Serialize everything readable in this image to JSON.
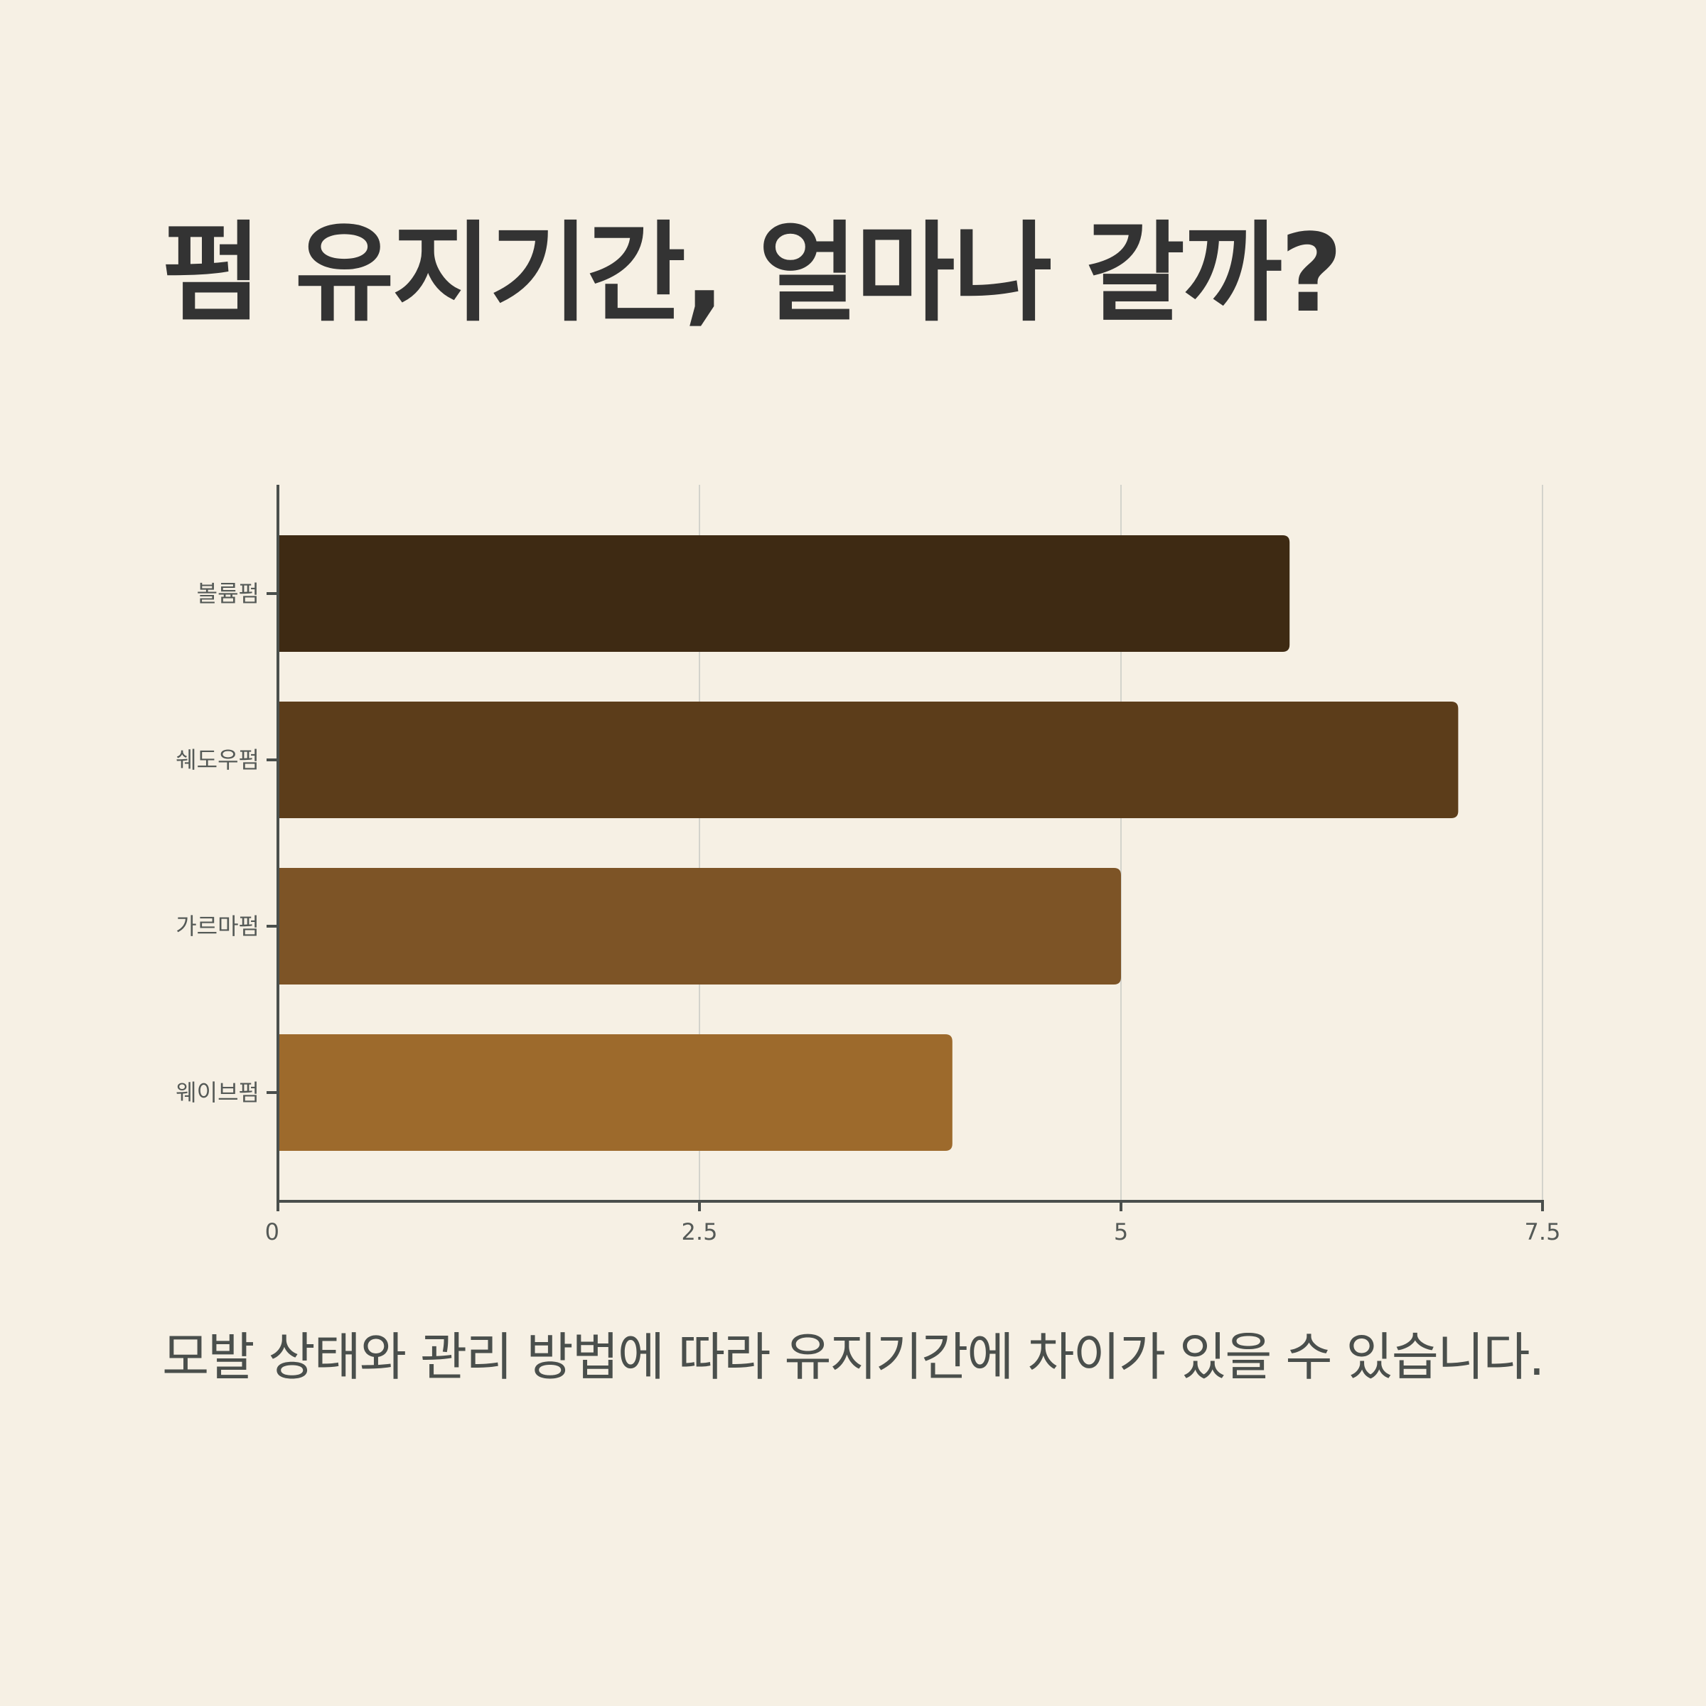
{
  "title": "펌 유지기간, 얼마나 갈까?",
  "caption": "모발 상태와 관리 방법에 따라 유지기간에 차이가 있을 수 있습니다.",
  "chart_data": {
    "type": "bar",
    "orientation": "horizontal",
    "title": "",
    "xlabel": "",
    "ylabel": "",
    "categories": [
      "볼륨펌",
      "쉐도우펌",
      "가르마펌",
      "웨이브펌"
    ],
    "values": [
      6,
      7,
      5,
      4
    ],
    "colors": [
      "#3e2a13",
      "#5c3d1a",
      "#7d5426",
      "#9d6a2c"
    ],
    "xlim": [
      0,
      7.5
    ],
    "xticks": [
      0,
      2.5,
      5,
      7.5
    ],
    "xtick_labels": [
      "0",
      "2.5",
      "5",
      "7.5"
    ],
    "grid": true,
    "grid_color": "#d3d3cc",
    "axis_color": "#4a4f4c"
  }
}
